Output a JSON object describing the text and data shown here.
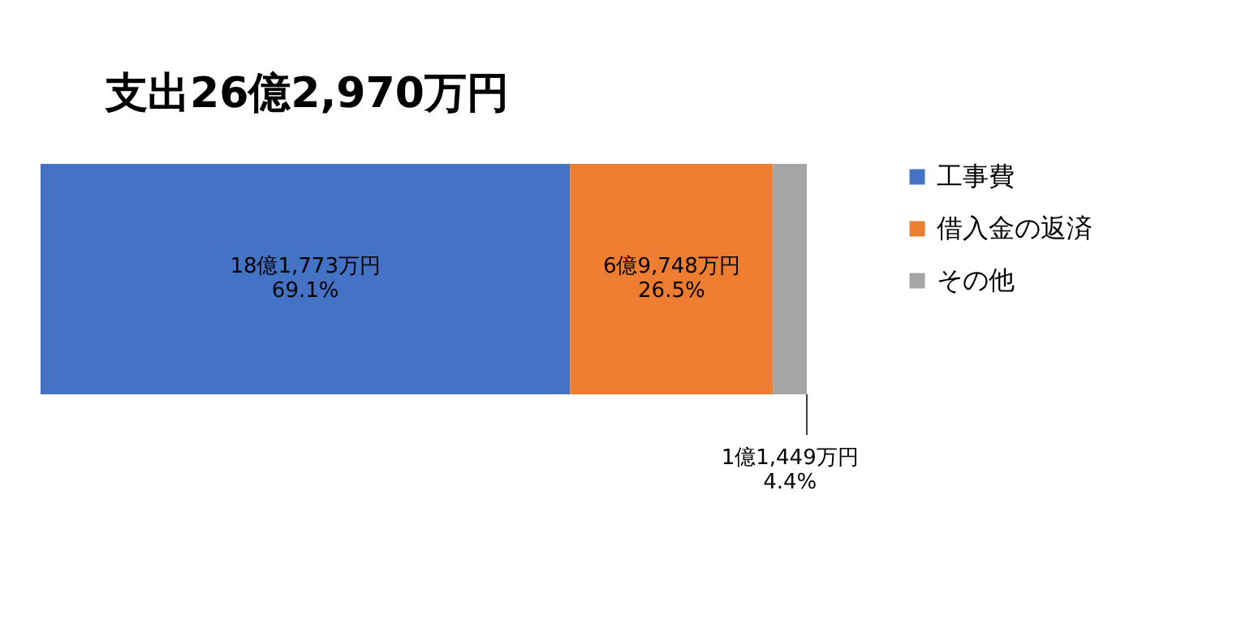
{
  "chart_data": {
    "type": "bar",
    "title": "支出26億2,970万円",
    "orientation": "horizontal",
    "stacked": true,
    "categories": [
      null
    ],
    "legend": "right",
    "series": [
      {
        "name": "工事費",
        "color": "#4472c4",
        "values": [
          69.1
        ],
        "value_labels": [
          "18億1,773万円\n69.1%"
        ]
      },
      {
        "name": "借入金の返済",
        "color": "#ed7d31",
        "values": [
          26.5
        ],
        "value_labels": [
          "6億9,748万円\n26.5%"
        ]
      },
      {
        "name": "その他",
        "color": "#a5a5a5",
        "values": [
          4.4
        ],
        "value_labels": [
          "1億1,449万円\n4.4%"
        ]
      }
    ]
  }
}
